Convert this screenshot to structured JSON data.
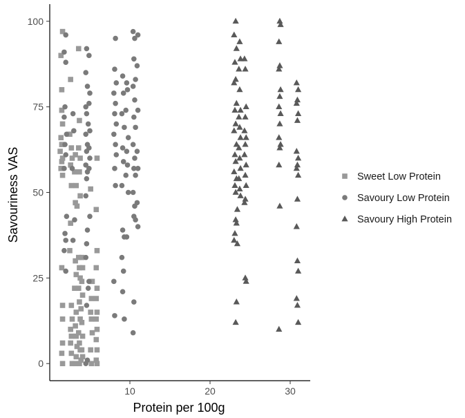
{
  "chart_data": {
    "type": "scatter",
    "title": "",
    "xlabel": "Protein per 100g",
    "ylabel": "Savouriness VAS",
    "xlim": [
      0,
      32.5
    ],
    "ylim": [
      -5,
      105
    ],
    "x_ticks": [
      10,
      20,
      30
    ],
    "y_ticks": [
      0,
      25,
      50,
      75,
      100
    ],
    "grid": false,
    "legend_position": "right",
    "colors": {
      "sweet_low": "#999999",
      "savoury_low": "#7a7a7a",
      "savoury_high": "#595959"
    },
    "series": [
      {
        "name": "Sweet Low Protein",
        "marker": "square",
        "points": [
          [
            1.6,
            97
          ],
          [
            1.4,
            90
          ],
          [
            1.5,
            80
          ],
          [
            1.5,
            74
          ],
          [
            1.6,
            70
          ],
          [
            1.4,
            66
          ],
          [
            1.5,
            64
          ],
          [
            1.3,
            62
          ],
          [
            1.6,
            60
          ],
          [
            1.5,
            59
          ],
          [
            1.4,
            57
          ],
          [
            1.6,
            55
          ],
          [
            1.5,
            28
          ],
          [
            1.6,
            17
          ],
          [
            1.6,
            13
          ],
          [
            1.6,
            6
          ],
          [
            1.5,
            3
          ],
          [
            1.6,
            0
          ],
          [
            2.6,
            83
          ],
          [
            2.5,
            67
          ],
          [
            2.7,
            63
          ],
          [
            2.8,
            60
          ],
          [
            2.6,
            58
          ],
          [
            2.7,
            52
          ],
          [
            2.6,
            41
          ],
          [
            2.5,
            33
          ],
          [
            2.7,
            17
          ],
          [
            2.8,
            13
          ],
          [
            2.6,
            10
          ],
          [
            2.7,
            8
          ],
          [
            2.6,
            6
          ],
          [
            2.7,
            3
          ],
          [
            2.8,
            0
          ],
          [
            3.2,
            61
          ],
          [
            3.1,
            56
          ],
          [
            3.3,
            52
          ],
          [
            3.2,
            47
          ],
          [
            3.4,
            46
          ],
          [
            3.2,
            30
          ],
          [
            3.3,
            26
          ],
          [
            3.1,
            22
          ],
          [
            3.3,
            15
          ],
          [
            3.2,
            11
          ],
          [
            3.3,
            8
          ],
          [
            3.4,
            5
          ],
          [
            3.3,
            2
          ],
          [
            3.2,
            0
          ],
          [
            3.6,
            92
          ],
          [
            3.7,
            71
          ],
          [
            3.6,
            63
          ],
          [
            3.8,
            60
          ],
          [
            3.7,
            56
          ],
          [
            3.8,
            49
          ],
          [
            3.6,
            31
          ],
          [
            3.7,
            28
          ],
          [
            3.8,
            25
          ],
          [
            3.6,
            22
          ],
          [
            3.7,
            18
          ],
          [
            3.9,
            16
          ],
          [
            3.8,
            13
          ],
          [
            3.6,
            9
          ],
          [
            3.7,
            6
          ],
          [
            3.8,
            4
          ],
          [
            3.9,
            1
          ],
          [
            3.7,
            0
          ],
          [
            4.0,
            31
          ],
          [
            4.1,
            28
          ],
          [
            4.0,
            24
          ],
          [
            4.1,
            20
          ],
          [
            4.0,
            12
          ],
          [
            4.1,
            8
          ],
          [
            4.0,
            4
          ],
          [
            4.1,
            2
          ],
          [
            5.1,
            51
          ],
          [
            5.3,
            24
          ],
          [
            5.2,
            19
          ],
          [
            5.1,
            15
          ],
          [
            5.2,
            13
          ],
          [
            5.3,
            9
          ],
          [
            5.1,
            4
          ],
          [
            5.2,
            0
          ],
          [
            5.9,
            60
          ],
          [
            5.8,
            45
          ],
          [
            5.9,
            33
          ],
          [
            5.8,
            28
          ],
          [
            5.9,
            22
          ],
          [
            5.8,
            19
          ],
          [
            5.9,
            15
          ],
          [
            5.8,
            13
          ],
          [
            5.9,
            10
          ],
          [
            5.8,
            7
          ],
          [
            5.9,
            4
          ],
          [
            5.8,
            1
          ],
          [
            5.9,
            0
          ]
        ]
      },
      {
        "name": "Savoury Low Protein",
        "marker": "circle",
        "points": [
          [
            2.0,
            96
          ],
          [
            1.8,
            91
          ],
          [
            2.0,
            88
          ],
          [
            1.9,
            75
          ],
          [
            1.8,
            72
          ],
          [
            2.1,
            67
          ],
          [
            1.9,
            64
          ],
          [
            2.0,
            61
          ],
          [
            1.8,
            57
          ],
          [
            2.1,
            43
          ],
          [
            1.9,
            38
          ],
          [
            2.0,
            36
          ],
          [
            1.8,
            33
          ],
          [
            2.0,
            27
          ],
          [
            2.9,
            73
          ],
          [
            3.0,
            68
          ],
          [
            2.8,
            57
          ],
          [
            3.1,
            42
          ],
          [
            2.9,
            36
          ],
          [
            4.6,
            92
          ],
          [
            4.5,
            85
          ],
          [
            4.7,
            81
          ],
          [
            4.5,
            75
          ],
          [
            4.6,
            73
          ],
          [
            4.8,
            70
          ],
          [
            4.5,
            67
          ],
          [
            4.7,
            64
          ],
          [
            4.6,
            62
          ],
          [
            4.5,
            58
          ],
          [
            4.7,
            56
          ],
          [
            4.6,
            54
          ],
          [
            4.5,
            49
          ],
          [
            4.7,
            39
          ],
          [
            4.6,
            35
          ],
          [
            4.5,
            31
          ],
          [
            4.8,
            22
          ],
          [
            4.6,
            17
          ],
          [
            4.7,
            1
          ],
          [
            4.5,
            0
          ],
          [
            4.9,
            90
          ],
          [
            5.0,
            79
          ],
          [
            4.9,
            76
          ],
          [
            5.0,
            68
          ],
          [
            4.9,
            63
          ],
          [
            5.0,
            60
          ],
          [
            4.9,
            57
          ],
          [
            5.0,
            43
          ],
          [
            4.9,
            24
          ],
          [
            8.2,
            95
          ],
          [
            8.1,
            86
          ],
          [
            8.3,
            82
          ],
          [
            8.0,
            79
          ],
          [
            8.2,
            76
          ],
          [
            8.1,
            73
          ],
          [
            8.3,
            70
          ],
          [
            8.0,
            67
          ],
          [
            8.2,
            64
          ],
          [
            8.3,
            61
          ],
          [
            8.1,
            57
          ],
          [
            8.2,
            52
          ],
          [
            8.0,
            24
          ],
          [
            8.1,
            14
          ],
          [
            9.1,
            84
          ],
          [
            9.2,
            79
          ],
          [
            9.0,
            73
          ],
          [
            9.3,
            69
          ],
          [
            9.1,
            63
          ],
          [
            9.2,
            59
          ],
          [
            9.0,
            52
          ],
          [
            9.1,
            39
          ],
          [
            9.3,
            37
          ],
          [
            9.0,
            31
          ],
          [
            9.2,
            27
          ],
          [
            9.1,
            21
          ],
          [
            9.3,
            13
          ],
          [
            9.6,
            82
          ],
          [
            9.7,
            80
          ],
          [
            9.5,
            74
          ],
          [
            9.8,
            66
          ],
          [
            9.6,
            62
          ],
          [
            9.7,
            58
          ],
          [
            9.5,
            55
          ],
          [
            9.8,
            50
          ],
          [
            9.6,
            37
          ],
          [
            10.4,
            97
          ],
          [
            10.6,
            95
          ],
          [
            10.5,
            89
          ],
          [
            10.7,
            83
          ],
          [
            10.4,
            81
          ],
          [
            10.6,
            77
          ],
          [
            10.5,
            72
          ],
          [
            10.7,
            69
          ],
          [
            10.4,
            64
          ],
          [
            10.6,
            60
          ],
          [
            10.5,
            57
          ],
          [
            10.7,
            55
          ],
          [
            10.4,
            50
          ],
          [
            10.6,
            46
          ],
          [
            10.5,
            43
          ],
          [
            10.7,
            42
          ],
          [
            10.5,
            18
          ],
          [
            10.4,
            9
          ],
          [
            11.0,
            96
          ],
          [
            10.9,
            87
          ],
          [
            11.0,
            74
          ],
          [
            10.9,
            62
          ],
          [
            11.0,
            57
          ],
          [
            10.9,
            47
          ],
          [
            11.0,
            40
          ]
        ]
      },
      {
        "name": "Savoury High Protein",
        "marker": "triangle",
        "points": [
          [
            23.2,
            100
          ],
          [
            23.0,
            96
          ],
          [
            23.3,
            92
          ],
          [
            23.1,
            88
          ],
          [
            23.2,
            83
          ],
          [
            23.0,
            82
          ],
          [
            23.3,
            76
          ],
          [
            23.1,
            74
          ],
          [
            23.2,
            70
          ],
          [
            23.0,
            68
          ],
          [
            23.3,
            64
          ],
          [
            23.1,
            61
          ],
          [
            23.2,
            59
          ],
          [
            23.0,
            56
          ],
          [
            23.3,
            54
          ],
          [
            23.1,
            52
          ],
          [
            23.2,
            50
          ],
          [
            23.4,
            45
          ],
          [
            23.2,
            42
          ],
          [
            23.3,
            41
          ],
          [
            23.1,
            38
          ],
          [
            23.0,
            36
          ],
          [
            23.4,
            35
          ],
          [
            23.3,
            18
          ],
          [
            23.2,
            12
          ],
          [
            23.7,
            94
          ],
          [
            23.8,
            89
          ],
          [
            23.6,
            86
          ],
          [
            23.7,
            80
          ],
          [
            23.8,
            74
          ],
          [
            23.6,
            72
          ],
          [
            23.7,
            69
          ],
          [
            23.8,
            66
          ],
          [
            23.6,
            63
          ],
          [
            23.7,
            60
          ],
          [
            23.8,
            57
          ],
          [
            23.6,
            54
          ],
          [
            23.7,
            51
          ],
          [
            23.8,
            49
          ],
          [
            24.3,
            89
          ],
          [
            24.4,
            86
          ],
          [
            24.5,
            75
          ],
          [
            24.4,
            72
          ],
          [
            24.3,
            68
          ],
          [
            24.5,
            66
          ],
          [
            24.4,
            64
          ],
          [
            24.3,
            61
          ],
          [
            24.5,
            58
          ],
          [
            24.4,
            55
          ],
          [
            24.5,
            52
          ],
          [
            24.4,
            48
          ],
          [
            24.3,
            47
          ],
          [
            24.4,
            25
          ],
          [
            24.5,
            24
          ],
          [
            28.7,
            100
          ],
          [
            28.8,
            99
          ],
          [
            28.6,
            94
          ],
          [
            28.7,
            87
          ],
          [
            28.6,
            86
          ],
          [
            28.8,
            80
          ],
          [
            28.7,
            78
          ],
          [
            28.6,
            75
          ],
          [
            28.8,
            73
          ],
          [
            28.7,
            70
          ],
          [
            28.6,
            66
          ],
          [
            28.8,
            64
          ],
          [
            28.7,
            63
          ],
          [
            28.6,
            58
          ],
          [
            28.7,
            46
          ],
          [
            28.6,
            10
          ],
          [
            30.8,
            82
          ],
          [
            31.0,
            80
          ],
          [
            30.9,
            77
          ],
          [
            30.8,
            76
          ],
          [
            31.0,
            73
          ],
          [
            30.9,
            71
          ],
          [
            30.8,
            62
          ],
          [
            31.0,
            60
          ],
          [
            30.9,
            58
          ],
          [
            30.8,
            57
          ],
          [
            31.0,
            55
          ],
          [
            30.9,
            48
          ],
          [
            30.8,
            40
          ],
          [
            30.9,
            30
          ],
          [
            31.0,
            27
          ],
          [
            30.8,
            19
          ],
          [
            30.9,
            17
          ],
          [
            31.0,
            12
          ]
        ]
      }
    ]
  }
}
